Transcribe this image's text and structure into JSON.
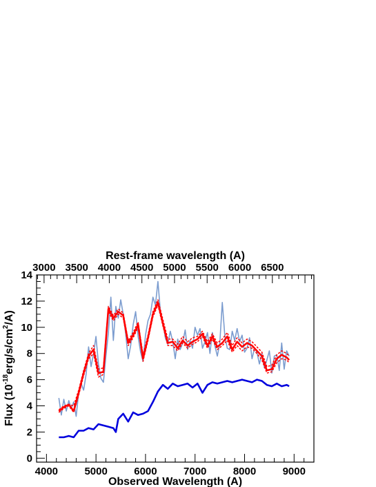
{
  "chart_data": {
    "type": "line",
    "title": "",
    "xlabel": "Observed Wavelength (A)",
    "ylabel_parts": {
      "prefix": "Flux (10",
      "exp1": "-18",
      "middle": "erg/s/cm",
      "exp2": "2",
      "suffix": "/A)"
    },
    "top_xlabel": "Rest-frame wavelength (A)",
    "xlim": [
      3800,
      9400
    ],
    "ylim": [
      -0.3,
      14
    ],
    "top_xlim": [
      2885,
      7137
    ],
    "x_ticks": [
      4000,
      5000,
      6000,
      7000,
      8000,
      9000
    ],
    "y_ticks": [
      0,
      2,
      4,
      6,
      8,
      10,
      12,
      14
    ],
    "top_ticks": [
      3000,
      3500,
      4000,
      4500,
      5000,
      5500,
      6000,
      6500
    ],
    "grid": false,
    "colors": {
      "observed": "#7b9ccf",
      "model": "#ff0000",
      "model_range": "#ff0000",
      "host": "#0000dd"
    },
    "series": [
      {
        "key": "observed",
        "x": [
          4250,
          4300,
          4350,
          4400,
          4450,
          4500,
          4550,
          4600,
          4650,
          4700,
          4750,
          4800,
          4850,
          4900,
          4950,
          5000,
          5050,
          5100,
          5150,
          5200,
          5250,
          5300,
          5350,
          5400,
          5450,
          5500,
          5550,
          5600,
          5650,
          5700,
          5750,
          5800,
          5850,
          5900,
          5950,
          6000,
          6050,
          6100,
          6150,
          6200,
          6250,
          6300,
          6350,
          6400,
          6450,
          6500,
          6550,
          6600,
          6650,
          6700,
          6750,
          6800,
          6850,
          6900,
          6950,
          7000,
          7050,
          7100,
          7150,
          7200,
          7250,
          7300,
          7350,
          7400,
          7450,
          7500,
          7550,
          7600,
          7650,
          7700,
          7750,
          7800,
          7850,
          7900,
          7950,
          8000,
          8050,
          8100,
          8150,
          8200,
          8250,
          8300,
          8350,
          8400,
          8450,
          8500,
          8550,
          8600,
          8650,
          8700,
          8750,
          8800,
          8850,
          8900
        ],
        "y": [
          4.6,
          3.3,
          4.5,
          3.6,
          4.4,
          3.8,
          4.3,
          3.2,
          5.0,
          5.7,
          5.2,
          6.4,
          8.5,
          7.0,
          8.0,
          9.3,
          7.2,
          6.1,
          5.8,
          7.8,
          9.6,
          12.3,
          9.0,
          11.6,
          10.7,
          12.1,
          11.0,
          9.5,
          7.6,
          8.6,
          10.2,
          11.2,
          9.3,
          8.1,
          7.4,
          9.4,
          10.5,
          11.0,
          12.3,
          11.7,
          13.5,
          11.2,
          10.4,
          9.2,
          8.7,
          9.7,
          8.9,
          7.6,
          9.1,
          8.3,
          8.8,
          9.8,
          8.3,
          9.0,
          8.4,
          10.0,
          9.4,
          9.9,
          8.4,
          8.9,
          9.6,
          8.0,
          9.6,
          8.6,
          7.8,
          8.8,
          11.9,
          9.4,
          8.4,
          8.3,
          9.7,
          9.0,
          9.9,
          8.9,
          9.4,
          8.1,
          8.4,
          9.2,
          7.6,
          8.4,
          8.1,
          7.2,
          8.0,
          6.9,
          7.5,
          8.2,
          6.5,
          7.8,
          7.9,
          6.7,
          8.8,
          6.8,
          8.2,
          7.8
        ]
      },
      {
        "key": "model_upper",
        "x": [
          4250,
          4350,
          4450,
          4550,
          4650,
          4750,
          4850,
          4950,
          5050,
          5150,
          5250,
          5350,
          5450,
          5550,
          5650,
          5750,
          5850,
          5950,
          6050,
          6150,
          6250,
          6350,
          6450,
          6550,
          6650,
          6750,
          6850,
          6950,
          7050,
          7150,
          7250,
          7350,
          7450,
          7550,
          7650,
          7750,
          7850,
          7950,
          8050,
          8150,
          8250,
          8350,
          8450,
          8550,
          8650,
          8750,
          8850,
          8900
        ],
        "y": [
          3.7,
          4.0,
          4.1,
          4.0,
          5.2,
          6.7,
          8.0,
          8.6,
          6.8,
          6.9,
          11.6,
          10.9,
          11.4,
          11.1,
          9.0,
          9.6,
          10.4,
          7.9,
          9.4,
          11.2,
          12.1,
          10.6,
          9.1,
          9.1,
          8.7,
          9.3,
          8.9,
          9.2,
          9.3,
          9.7,
          8.9,
          9.5,
          8.8,
          9.1,
          9.6,
          8.6,
          9.2,
          8.8,
          9.1,
          8.9,
          8.5,
          8.1,
          7.0,
          7.1,
          7.9,
          8.2,
          8.0,
          7.8
        ]
      },
      {
        "key": "model",
        "x": [
          4250,
          4350,
          4450,
          4550,
          4650,
          4750,
          4850,
          4950,
          5050,
          5150,
          5250,
          5350,
          5450,
          5550,
          5650,
          5750,
          5850,
          5950,
          6050,
          6150,
          6250,
          6350,
          6450,
          6550,
          6650,
          6750,
          6850,
          6950,
          7050,
          7150,
          7250,
          7350,
          7450,
          7550,
          7650,
          7750,
          7850,
          7950,
          8050,
          8150,
          8250,
          8350,
          8450,
          8550,
          8650,
          8750,
          8850,
          8900
        ],
        "y": [
          3.6,
          3.9,
          4.1,
          3.6,
          5.0,
          6.5,
          7.8,
          8.3,
          6.5,
          6.6,
          11.4,
          10.7,
          11.2,
          10.9,
          8.8,
          9.4,
          10.2,
          7.6,
          9.2,
          11.0,
          11.9,
          10.3,
          8.8,
          8.9,
          8.4,
          9.0,
          8.6,
          8.9,
          9.1,
          9.5,
          8.6,
          9.3,
          8.5,
          8.8,
          9.3,
          8.3,
          8.9,
          8.5,
          8.8,
          8.6,
          8.2,
          7.8,
          6.7,
          6.8,
          7.6,
          7.9,
          7.7,
          7.5
        ]
      },
      {
        "key": "model_lower",
        "x": [
          4250,
          4350,
          4450,
          4550,
          4650,
          4750,
          4850,
          4950,
          5050,
          5150,
          5250,
          5350,
          5450,
          5550,
          5650,
          5750,
          5850,
          5950,
          6050,
          6150,
          6250,
          6350,
          6450,
          6550,
          6650,
          6750,
          6850,
          6950,
          7050,
          7150,
          7250,
          7350,
          7450,
          7550,
          7650,
          7750,
          7850,
          7950,
          8050,
          8150,
          8250,
          8350,
          8450,
          8550,
          8650,
          8750,
          8850,
          8900
        ],
        "y": [
          3.5,
          3.8,
          4.0,
          3.5,
          4.8,
          6.3,
          7.6,
          8.0,
          6.2,
          6.4,
          11.2,
          10.5,
          11.0,
          10.7,
          8.6,
          9.2,
          10.0,
          7.4,
          9.0,
          10.8,
          11.7,
          10.1,
          8.6,
          8.6,
          8.2,
          8.8,
          8.4,
          8.7,
          8.9,
          9.3,
          8.4,
          9.1,
          8.3,
          8.6,
          9.0,
          8.1,
          8.6,
          8.2,
          8.5,
          8.4,
          8.0,
          7.5,
          6.5,
          6.6,
          7.3,
          7.6,
          7.5,
          7.3
        ]
      },
      {
        "key": "host",
        "x": [
          4250,
          4350,
          4450,
          4550,
          4650,
          4750,
          4850,
          4950,
          5050,
          5150,
          5250,
          5350,
          5400,
          5450,
          5550,
          5650,
          5750,
          5850,
          5950,
          6050,
          6150,
          6250,
          6350,
          6450,
          6550,
          6650,
          6750,
          6850,
          6950,
          7050,
          7150,
          7250,
          7350,
          7450,
          7550,
          7650,
          7750,
          7850,
          7950,
          8050,
          8150,
          8250,
          8350,
          8450,
          8550,
          8650,
          8750,
          8850,
          8900
        ],
        "y": [
          1.6,
          1.6,
          1.7,
          1.6,
          2.1,
          2.1,
          2.3,
          2.2,
          2.6,
          2.5,
          2.4,
          2.3,
          2.0,
          3.0,
          3.4,
          2.8,
          3.5,
          3.3,
          3.4,
          3.6,
          4.3,
          5.1,
          5.6,
          5.3,
          5.7,
          5.5,
          5.6,
          5.7,
          5.4,
          5.7,
          5.0,
          5.6,
          5.8,
          5.7,
          5.8,
          5.9,
          5.8,
          5.9,
          6.0,
          5.9,
          5.8,
          6.0,
          5.9,
          5.6,
          5.5,
          5.7,
          5.5,
          5.6,
          5.5
        ]
      }
    ]
  }
}
